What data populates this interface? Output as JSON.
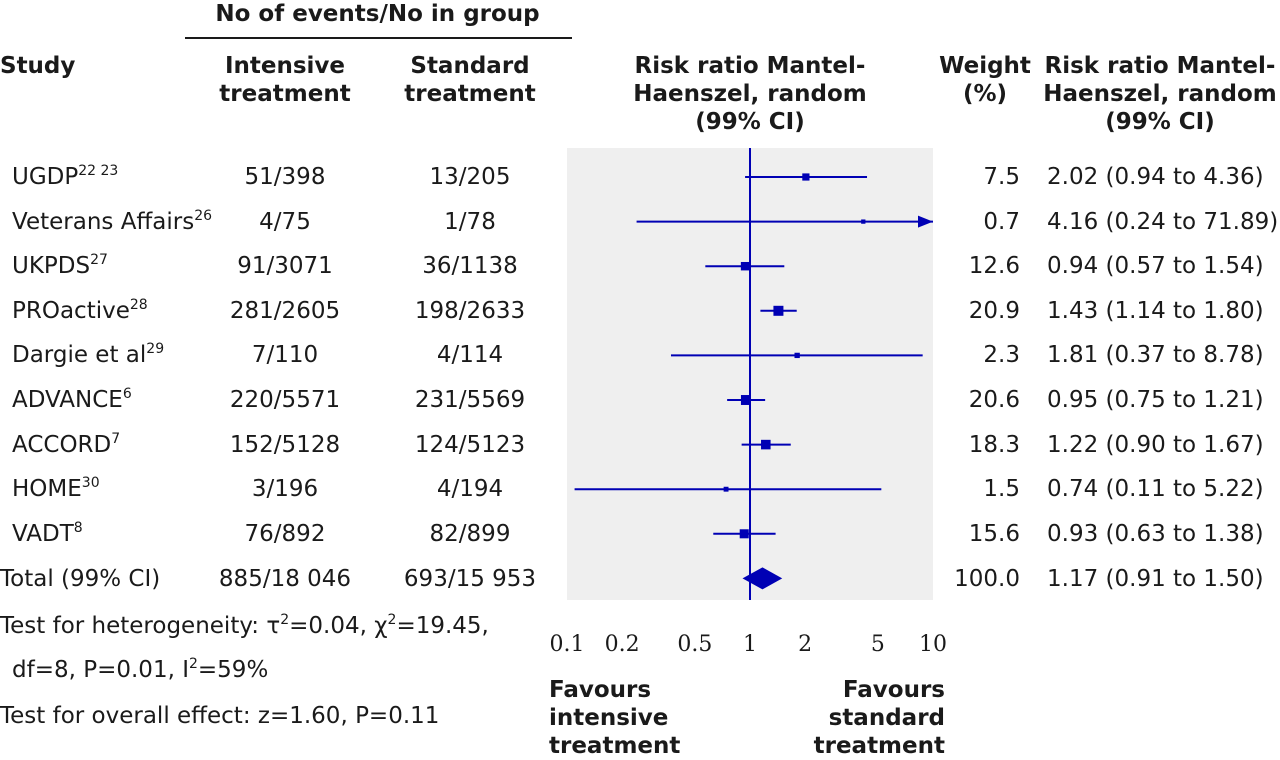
{
  "header": {
    "group_title": "No of events/No in group",
    "study": "Study",
    "intensive_l1": "Intensive",
    "intensive_l2": "treatment",
    "standard_l1": "Standard",
    "standard_l2": "treatment",
    "rr_l1": "Risk ratio Mantel-",
    "rr_l2": "Haenszel, random",
    "rr_l3": "(99% CI)",
    "weight_l1": "Weight",
    "weight_l2": "(%)",
    "rr2_l1": "Risk ratio Mantel-",
    "rr2_l2": "Haenszel, random",
    "rr2_l3": "(99% CI)"
  },
  "rows": [
    {
      "study": "UGDP",
      "ref": "22 23",
      "intensive": "51/398",
      "standard": "13/205",
      "weight": "7.5",
      "rr_text": "2.02 (0.94 to 4.36)"
    },
    {
      "study": "Veterans Affairs",
      "ref": "26",
      "intensive": "4/75",
      "standard": "1/78",
      "weight": "0.7",
      "rr_text": "4.16 (0.24 to 71.89)"
    },
    {
      "study": "UKPDS",
      "ref": "27",
      "intensive": "91/3071",
      "standard": "36/1138",
      "weight": "12.6",
      "rr_text": "0.94 (0.57 to 1.54)"
    },
    {
      "study": "PROactive",
      "ref": "28",
      "intensive": "281/2605",
      "standard": "198/2633",
      "weight": "20.9",
      "rr_text": "1.43 (1.14 to 1.80)"
    },
    {
      "study": "Dargie et al",
      "ref": "29",
      "intensive": "7/110",
      "standard": "4/114",
      "weight": "2.3",
      "rr_text": "1.81 (0.37 to 8.78)"
    },
    {
      "study": "ADVANCE",
      "ref": "6",
      "intensive": "220/5571",
      "standard": "231/5569",
      "weight": "20.6",
      "rr_text": "0.95 (0.75 to 1.21)"
    },
    {
      "study": "ACCORD",
      "ref": "7",
      "intensive": "152/5128",
      "standard": "124/5123",
      "weight": "18.3",
      "rr_text": "1.22 (0.90 to 1.67)"
    },
    {
      "study": "HOME",
      "ref": "30",
      "intensive": "3/196",
      "standard": "4/194",
      "weight": "1.5",
      "rr_text": "0.74 (0.11 to 5.22)"
    },
    {
      "study": "VADT",
      "ref": "8",
      "intensive": "76/892",
      "standard": "82/899",
      "weight": "15.6",
      "rr_text": "0.93 (0.63 to 1.38)"
    }
  ],
  "total": {
    "label": "Total (99% CI)",
    "intensive": "885/18 046",
    "standard": "693/15 953",
    "weight": "100.0",
    "rr_text": "1.17 (0.91 to 1.50)"
  },
  "footer": {
    "het_prefix": "Test for heterogeneity: τ",
    "het_tau_exp": "2",
    "het_mid": "=0.04, χ",
    "het_chi_exp": "2",
    "het_end": "=19.45,",
    "het2_prefix": "df=8, P=0.01, I",
    "het2_exp": "2",
    "het2_end": "=59%",
    "overall": "Test for overall effect: z=1.60, P=0.11"
  },
  "favours": {
    "left_l1": "Favours",
    "left_l2": "intensive",
    "left_l3": "treatment",
    "right_l1": "Favours",
    "right_l2": "standard",
    "right_l3": "treatment"
  },
  "colors": {
    "mark": "#0000b4",
    "panel": "#efefef",
    "text": "#1a1a1a"
  },
  "chart_data": {
    "type": "forest",
    "scale": "log",
    "xlim": [
      0.1,
      10
    ],
    "ticks": [
      0.1,
      0.2,
      0.5,
      1,
      2,
      5,
      10
    ],
    "tick_labels": [
      "0.1",
      "0.2",
      "0.5",
      "1",
      "2",
      "5",
      "10"
    ],
    "reference": 1,
    "studies": [
      {
        "name": "UGDP",
        "rr": 2.02,
        "lo": 0.94,
        "hi": 4.36,
        "weight": 7.5
      },
      {
        "name": "Veterans Affairs",
        "rr": 4.16,
        "lo": 0.24,
        "hi": 71.89,
        "weight": 0.7
      },
      {
        "name": "UKPDS",
        "rr": 0.94,
        "lo": 0.57,
        "hi": 1.54,
        "weight": 12.6
      },
      {
        "name": "PROactive",
        "rr": 1.43,
        "lo": 1.14,
        "hi": 1.8,
        "weight": 20.9
      },
      {
        "name": "Dargie et al",
        "rr": 1.81,
        "lo": 0.37,
        "hi": 8.78,
        "weight": 2.3
      },
      {
        "name": "ADVANCE",
        "rr": 0.95,
        "lo": 0.75,
        "hi": 1.21,
        "weight": 20.6
      },
      {
        "name": "ACCORD",
        "rr": 1.22,
        "lo": 0.9,
        "hi": 1.67,
        "weight": 18.3
      },
      {
        "name": "HOME",
        "rr": 0.74,
        "lo": 0.11,
        "hi": 5.22,
        "weight": 1.5
      },
      {
        "name": "VADT",
        "rr": 0.93,
        "lo": 0.63,
        "hi": 1.38,
        "weight": 15.6
      }
    ],
    "pooled": {
      "rr": 1.17,
      "lo": 0.91,
      "hi": 1.5
    }
  }
}
